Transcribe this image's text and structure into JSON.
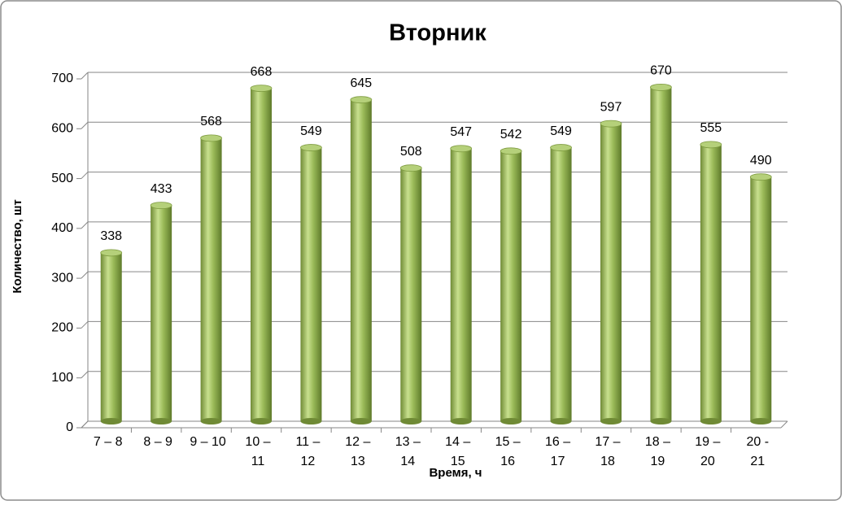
{
  "chart_data": {
    "type": "bar",
    "title": "Вторник",
    "x_label": "Время, ч",
    "y_label": "Количество, шт",
    "categories": [
      "7 – 8",
      "8  – 9",
      "9 – 10",
      "10 – 11",
      "11 – 12",
      "12 – 13",
      "13 – 14",
      "14 – 15",
      "15 – 16",
      "16 – 17",
      "17 – 18",
      "18 – 19",
      "19 – 20",
      "20 - 21"
    ],
    "values": [
      338,
      433,
      568,
      668,
      549,
      645,
      508,
      547,
      542,
      549,
      597,
      670,
      555,
      490
    ],
    "color": "#9bbb59",
    "ylim": [
      0,
      700
    ],
    "yticks": [
      0,
      100,
      200,
      300,
      400,
      500,
      600,
      700
    ],
    "grid": true
  }
}
